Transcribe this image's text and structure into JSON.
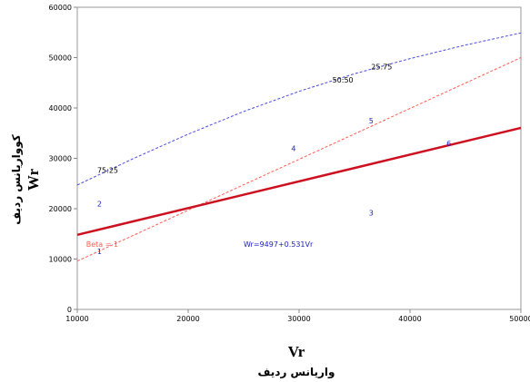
{
  "chart_data": {
    "type": "scatter",
    "xlabel": "Vr",
    "xlabel_fa": "واریانس ردیف",
    "ylabel": "Wr",
    "ylabel_fa": "کوواریانس ردیف",
    "xlim": [
      10000,
      50000
    ],
    "ylim": [
      0,
      60000
    ],
    "xticks": [
      "10000",
      "20000",
      "30000",
      "40000",
      "50000"
    ],
    "yticks": [
      "0",
      "10000",
      "20000",
      "30000",
      "40000",
      "50000",
      "60000"
    ],
    "grid": false,
    "points": [
      {
        "label": "1",
        "x": 12000,
        "y": 11500
      },
      {
        "label": "2",
        "x": 12000,
        "y": 21000
      },
      {
        "label": "3",
        "x": 36500,
        "y": 19200
      },
      {
        "label": "4",
        "x": 29500,
        "y": 32000
      },
      {
        "label": "5",
        "x": 36500,
        "y": 37500
      },
      {
        "label": "6",
        "x": 43500,
        "y": 33000
      }
    ],
    "regression": {
      "label": "Wr=9497+0.531Vr",
      "intercept": 9497,
      "slope": 0.531,
      "color": "#cc1020"
    },
    "beta_line": {
      "label": "Beta = 1",
      "x": [
        10000,
        50000
      ],
      "y": [
        9600,
        50000
      ],
      "color": "#ff5a50"
    },
    "parabola": {
      "color": "#4a4ae0",
      "x": [
        10000,
        15000,
        20000,
        25000,
        30000,
        35000,
        40000,
        45000,
        50000
      ],
      "y": [
        24700,
        29900,
        34800,
        39300,
        43300,
        46800,
        49800,
        52500,
        54900
      ]
    },
    "parabola_labels": [
      {
        "label": "75:25",
        "x": 11800,
        "y": 27700
      },
      {
        "label": "50:50",
        "x": 33000,
        "y": 45600
      },
      {
        "label": "25:75",
        "x": 36500,
        "y": 48200
      }
    ],
    "equation_label_pos": {
      "x": 25000,
      "y": 13000
    },
    "beta_label_pos": {
      "x": 10800,
      "y": 13000
    },
    "colors": {
      "points": "#2020c0",
      "axis": "#888888",
      "text": "#000000"
    }
  }
}
